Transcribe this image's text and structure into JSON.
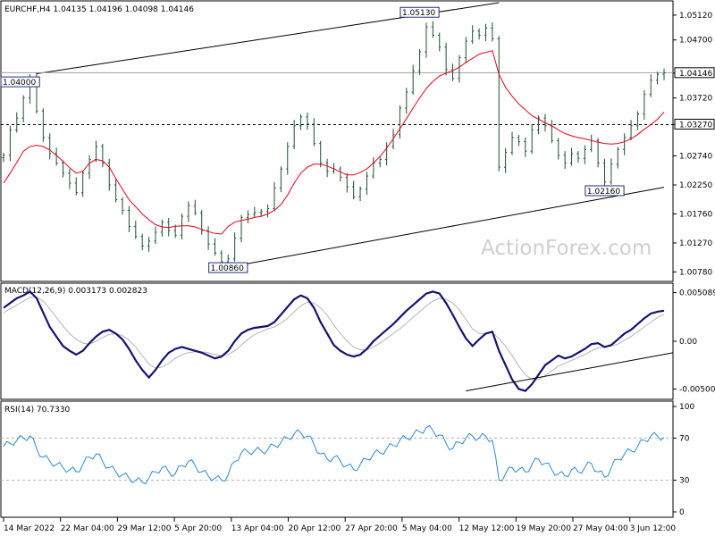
{
  "chart_data": [
    {
      "type": "candlestick",
      "title": "EURCHF,H4 1.04135 1.04196 1.04098 1.04146",
      "watermark": "ActionForex.com",
      "ylim": [
        1.0065,
        1.0533
      ],
      "y_ticks": [
        1.0512,
        1.047,
        1.0414,
        1.0372,
        1.0327,
        1.0274,
        1.0225,
        1.0176,
        1.0127,
        1.0078
      ],
      "y_tick_labels": [
        "1.05120",
        "1.04700",
        "1.04146",
        "1.03720",
        "1.03270",
        "1.02740",
        "1.02250",
        "1.01760",
        "1.01270",
        "1.00780"
      ],
      "x_dates": [
        "14 Mar 2022",
        "22 Mar 04:00",
        "29 Mar 12:00",
        "5 Apr 20:00",
        "13 Apr 04:00",
        "20 Apr 12:00",
        "27 Apr 20:00",
        "5 May 04:00",
        "12 May 12:00",
        "19 May 20:00",
        "27 May 04:00",
        "3 Jun 12:00"
      ],
      "current_price": 1.04146,
      "current_price_label": "1.04146",
      "support_level": 1.0327,
      "support_label": "1.03270",
      "price_labels": [
        {
          "text": "1.05130",
          "value": 1.0513,
          "date_index": 63
        },
        {
          "text": "1.00860",
          "value": 1.0086,
          "date_index": 34
        },
        {
          "text": "1.02160",
          "value": 1.0216,
          "date_index": 91
        },
        {
          "text": "1.04000",
          "value": 1.04,
          "date_index": 0
        }
      ],
      "channel_lines": [
        {
          "name": "upper",
          "from": [
            5,
            1.0413
          ],
          "to": [
            75,
            1.0533
          ]
        },
        {
          "name": "lower",
          "from": [
            34,
            1.0086
          ],
          "to": [
            100,
            1.0221
          ]
        }
      ],
      "closes": [
        1.0275,
        1.0318,
        1.0338,
        1.0372,
        1.0405,
        1.035,
        1.0305,
        1.0278,
        1.0262,
        1.0245,
        1.0228,
        1.0212,
        1.0245,
        1.0268,
        1.029,
        1.0262,
        1.0225,
        1.02,
        1.0182,
        1.0155,
        1.0138,
        1.0122,
        1.013,
        1.0145,
        1.0162,
        1.0148,
        1.014,
        1.0172,
        1.019,
        1.0178,
        1.0148,
        1.0125,
        1.011,
        1.0095,
        1.01,
        1.0135,
        1.017,
        1.0175,
        1.0178,
        1.018,
        1.0185,
        1.022,
        1.0252,
        1.029,
        1.0325,
        1.034,
        1.0328,
        1.0295,
        1.0262,
        1.0248,
        1.0252,
        1.0238,
        1.0222,
        1.0205,
        1.0218,
        1.024,
        1.0262,
        1.0268,
        1.029,
        1.031,
        1.0355,
        1.0382,
        1.0418,
        1.045,
        1.0492,
        1.0478,
        1.0458,
        1.042,
        1.0405,
        1.044,
        1.0468,
        1.0485,
        1.0478,
        1.049,
        1.0472,
        1.0255,
        1.028,
        1.0305,
        1.0298,
        1.0282,
        1.0318,
        1.0338,
        1.0325,
        1.03,
        1.0275,
        1.0262,
        1.0278,
        1.027,
        1.0285,
        1.03,
        1.0262,
        1.023,
        1.026,
        1.0285,
        1.0305,
        1.0325,
        1.0345,
        1.0378,
        1.0402,
        1.0412,
        1.04146
      ],
      "ma_values": [
        1.0228,
        1.0245,
        1.0263,
        1.0282,
        1.029,
        1.0292,
        1.029,
        1.0284,
        1.0275,
        1.0265,
        1.0254,
        1.0245,
        1.0248,
        1.0262,
        1.0268,
        1.0266,
        1.0255,
        1.0236,
        1.0218,
        1.02,
        1.0188,
        1.0176,
        1.0166,
        1.0158,
        1.0154,
        1.0153,
        1.0155,
        1.0156,
        1.0156,
        1.0154,
        1.015,
        1.0146,
        1.0143,
        1.0142,
        1.0155,
        1.0162,
        1.0165,
        1.0167,
        1.017,
        1.0172,
        1.0176,
        1.0182,
        1.0192,
        1.0208,
        1.0228,
        1.0245,
        1.0255,
        1.026,
        1.026,
        1.0257,
        1.0252,
        1.0247,
        1.0242,
        1.0242,
        1.0246,
        1.0252,
        1.0262,
        1.0273,
        1.0287,
        1.0303,
        1.032,
        1.0337,
        1.0355,
        1.0372,
        1.0388,
        1.04,
        1.0409,
        1.0414,
        1.0418,
        1.0424,
        1.0432,
        1.0439,
        1.0446,
        1.0449,
        1.0452,
        1.0412,
        1.039,
        1.0375,
        1.0362,
        1.0352,
        1.0342,
        1.0336,
        1.033,
        1.0325,
        1.0318,
        1.0312,
        1.0308,
        1.0305,
        1.0303,
        1.03,
        1.0297,
        1.0295,
        1.0294,
        1.0295,
        1.0298,
        1.0303,
        1.031,
        1.0319,
        1.0327,
        1.0336,
        1.0348
      ],
      "gridlines": false
    },
    {
      "type": "line",
      "title": "MACD(12,26,9) 0.003173 0.002823",
      "ylim": [
        -0.0058,
        0.0058
      ],
      "y_ticks": [
        0.005089,
        0.0,
        -0.005002
      ],
      "y_tick_labels": [
        "0.005089",
        "0.00",
        "-0.005002"
      ],
      "trend_line": {
        "from": [
          70,
          -0.0052
        ],
        "to": [
          100,
          -0.0012
        ]
      },
      "macd": [
        0.0035,
        0.004,
        0.0045,
        0.0048,
        0.0052,
        0.0045,
        0.003,
        0.0015,
        0.0005,
        -0.0005,
        -0.001,
        -0.0014,
        -0.001,
        -0.0002,
        0.0005,
        0.001,
        0.0012,
        0.0008,
        0.0002,
        -0.0008,
        -0.002,
        -0.003,
        -0.0038,
        -0.003,
        -0.002,
        -0.0012,
        -0.0008,
        -0.0006,
        -0.0008,
        -0.001,
        -0.0012,
        -0.0015,
        -0.0018,
        -0.0016,
        -0.001,
        0.0,
        0.0008,
        0.0012,
        0.0014,
        0.0015,
        0.0016,
        0.002,
        0.0028,
        0.0036,
        0.0044,
        0.0048,
        0.0045,
        0.0035,
        0.002,
        0.0008,
        -0.0004,
        -0.001,
        -0.0014,
        -0.0016,
        -0.0014,
        -0.0008,
        0.0,
        0.0006,
        0.0012,
        0.0018,
        0.0025,
        0.0032,
        0.0038,
        0.0044,
        0.005,
        0.0052,
        0.005,
        0.004,
        0.0028,
        0.0015,
        0.0003,
        -0.0005,
        0.0002,
        0.0008,
        0.001,
        -0.001,
        -0.0025,
        -0.004,
        -0.005,
        -0.0052,
        -0.0045,
        -0.0035,
        -0.0025,
        -0.002,
        -0.0015,
        -0.0018,
        -0.0016,
        -0.0012,
        -0.0008,
        -0.0003,
        -0.0002,
        -0.0006,
        -0.0004,
        0.0002,
        0.0008,
        0.0012,
        0.0018,
        0.0024,
        0.0029,
        0.0031,
        0.0032
      ],
      "signal": [
        0.003,
        0.0034,
        0.0038,
        0.0042,
        0.0046,
        0.0046,
        0.0042,
        0.0034,
        0.0025,
        0.0016,
        0.0008,
        0.0002,
        -0.0002,
        -0.0003,
        0.0,
        0.0004,
        0.0007,
        0.0008,
        0.0006,
        0.0001,
        -0.0006,
        -0.0015,
        -0.0024,
        -0.0028,
        -0.0027,
        -0.0023,
        -0.0018,
        -0.0014,
        -0.0012,
        -0.0011,
        -0.0011,
        -0.0012,
        -0.0014,
        -0.0015,
        -0.0014,
        -0.001,
        -0.0004,
        0.0002,
        0.0007,
        0.001,
        0.0013,
        0.0015,
        0.0019,
        0.0024,
        0.0031,
        0.0037,
        0.0041,
        0.004,
        0.0035,
        0.0027,
        0.0017,
        0.0008,
        0.0,
        -0.0006,
        -0.0009,
        -0.0009,
        -0.0006,
        -0.0002,
        0.0003,
        0.0008,
        0.0013,
        0.0019,
        0.0025,
        0.0031,
        0.0037,
        0.0042,
        0.0045,
        0.0044,
        0.004,
        0.0033,
        0.0023,
        0.0013,
        0.0008,
        0.0008,
        0.0009,
        0.0003,
        -0.0005,
        -0.0015,
        -0.0026,
        -0.0035,
        -0.004,
        -0.004,
        -0.0036,
        -0.0031,
        -0.0026,
        -0.0023,
        -0.002,
        -0.0017,
        -0.0014,
        -0.001,
        -0.0007,
        -0.0006,
        -0.0005,
        -0.0003,
        0.0001,
        0.0005,
        0.001,
        0.0015,
        0.002,
        0.0025,
        0.0028
      ]
    },
    {
      "type": "line",
      "title": "RSI(14) 70.7330",
      "ylim": [
        0,
        100
      ],
      "y_ticks": [
        100,
        70,
        30,
        0
      ],
      "y_tick_labels": [
        "100",
        "70",
        "30",
        "0"
      ],
      "levels": [
        70,
        30
      ],
      "rsi": [
        62,
        65,
        68,
        70,
        72,
        60,
        52,
        48,
        45,
        42,
        40,
        38,
        45,
        52,
        55,
        48,
        42,
        38,
        35,
        32,
        30,
        28,
        32,
        38,
        42,
        38,
        36,
        44,
        48,
        44,
        38,
        34,
        32,
        30,
        35,
        48,
        56,
        57,
        58,
        58,
        59,
        63,
        66,
        70,
        74,
        75,
        72,
        64,
        55,
        50,
        52,
        48,
        44,
        40,
        45,
        50,
        55,
        56,
        60,
        63,
        68,
        70,
        73,
        76,
        80,
        77,
        73,
        65,
        60,
        66,
        70,
        72,
        70,
        72,
        68,
        30,
        36,
        42,
        40,
        38,
        45,
        50,
        46,
        40,
        36,
        34,
        40,
        38,
        42,
        46,
        38,
        33,
        42,
        50,
        55,
        58,
        62,
        68,
        72,
        72,
        70.7
      ]
    }
  ]
}
